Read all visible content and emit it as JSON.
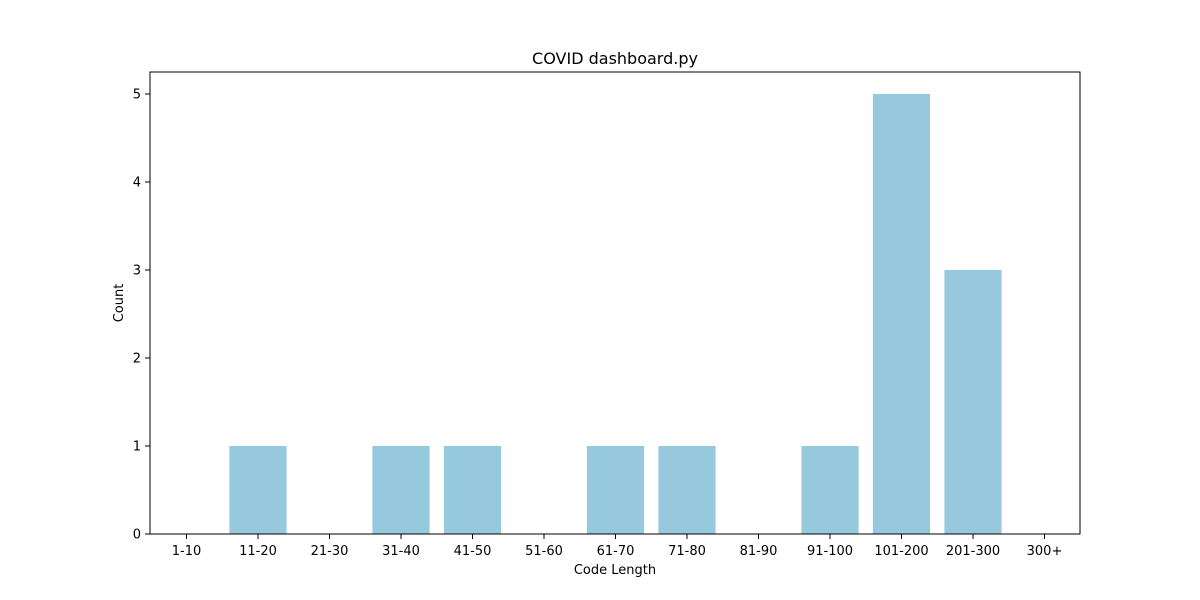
{
  "chart_data": {
    "type": "bar",
    "title": "COVID dashboard.py",
    "xlabel": "Code Length",
    "ylabel": "Count",
    "categories": [
      "1-10",
      "11-20",
      "21-30",
      "31-40",
      "41-50",
      "51-60",
      "61-70",
      "71-80",
      "81-90",
      "91-100",
      "101-200",
      "201-300",
      "300+"
    ],
    "values": [
      0,
      1,
      0,
      1,
      1,
      0,
      1,
      1,
      0,
      1,
      5,
      3,
      0
    ],
    "ylim": [
      0,
      5.25
    ],
    "yticks": [
      0,
      1,
      2,
      3,
      4,
      5
    ],
    "bar_color": "#96c9dd",
    "grid": false,
    "legend": "none"
  }
}
